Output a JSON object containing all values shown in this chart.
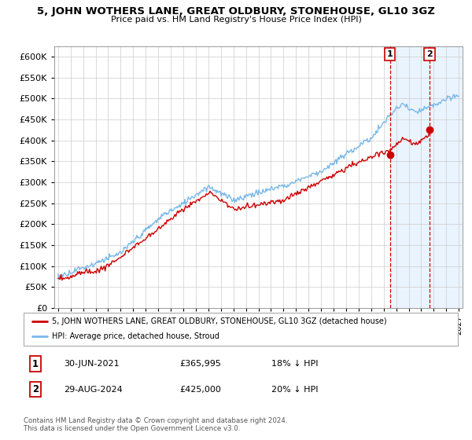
{
  "title": "5, JOHN WOTHERS LANE, GREAT OLDBURY, STONEHOUSE, GL10 3GZ",
  "subtitle": "Price paid vs. HM Land Registry's House Price Index (HPI)",
  "legend_line1": "5, JOHN WOTHERS LANE, GREAT OLDBURY, STONEHOUSE, GL10 3GZ (detached house)",
  "legend_line2": "HPI: Average price, detached house, Stroud",
  "annotation1_date": "30-JUN-2021",
  "annotation1_price": "£365,995",
  "annotation1_hpi": "18% ↓ HPI",
  "annotation2_date": "29-AUG-2024",
  "annotation2_price": "£425,000",
  "annotation2_hpi": "20% ↓ HPI",
  "footer": "Contains HM Land Registry data © Crown copyright and database right 2024.\nThis data is licensed under the Open Government Licence v3.0.",
  "hpi_color": "#7ab8e8",
  "price_color": "#cc0000",
  "vline_color": "#cc0000",
  "shade_color": "#ddeeff",
  "background_color": "#ffffff",
  "grid_color": "#cccccc",
  "ylim_min": 0,
  "ylim_max": 625000,
  "yticks": [
    0,
    50000,
    100000,
    150000,
    200000,
    250000,
    300000,
    350000,
    400000,
    450000,
    500000,
    550000,
    600000
  ],
  "point1_x": 2021.5,
  "point1_y": 365995,
  "point2_x": 2024.67,
  "point2_y": 425000,
  "xmin": 1994.7,
  "xmax": 2027.3
}
